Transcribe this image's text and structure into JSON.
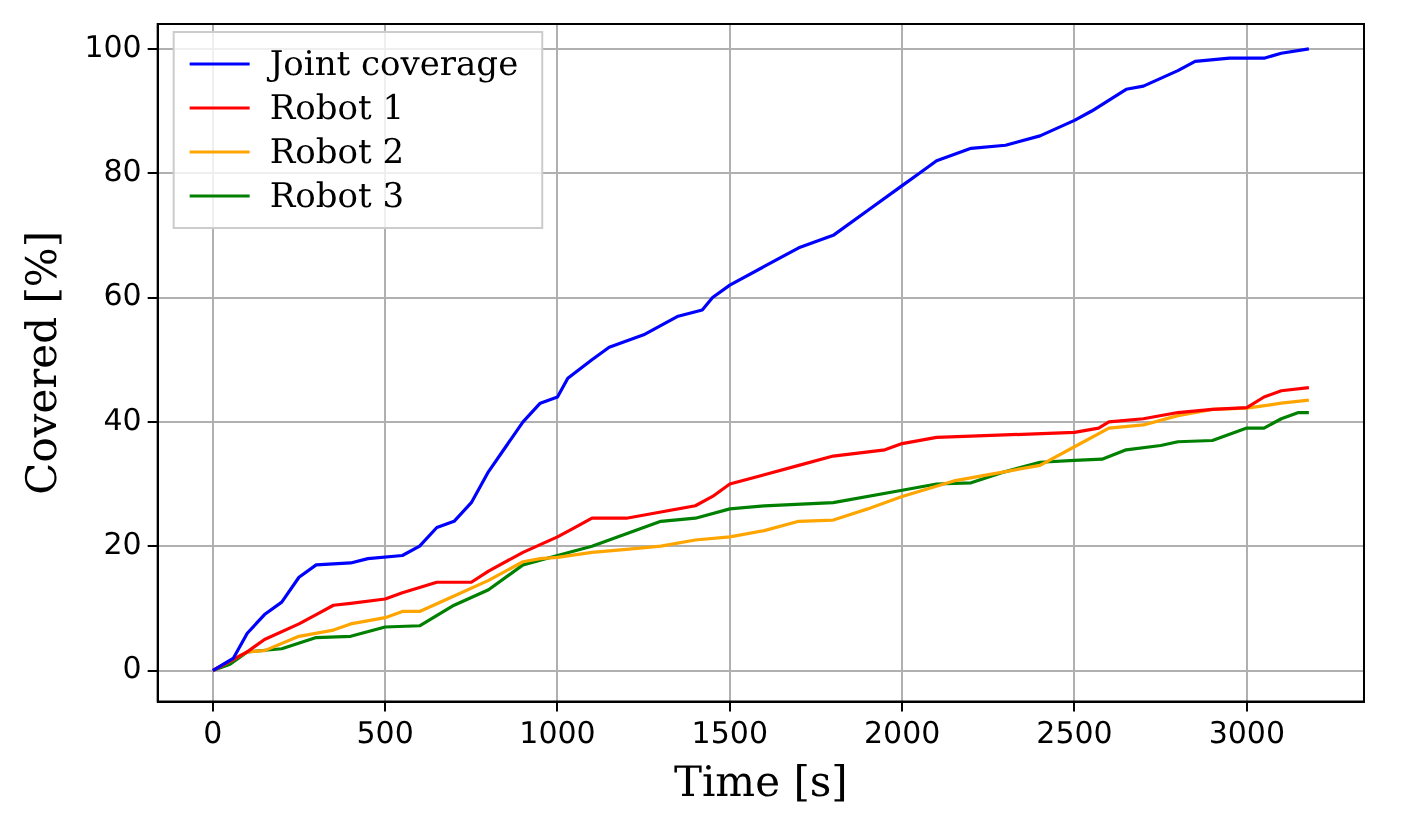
{
  "chart_data": {
    "type": "line",
    "xlabel": "Time [s]",
    "ylabel": "Covered [%]",
    "xlim": [
      -160,
      3340
    ],
    "ylim": [
      -5,
      104
    ],
    "xticks": [
      0,
      500,
      1000,
      1500,
      2000,
      2500,
      3000
    ],
    "yticks": [
      0,
      20,
      40,
      60,
      80,
      100
    ],
    "grid": true,
    "legend": "top left",
    "marker": "none",
    "line_style": "solid",
    "series": [
      {
        "name": "Joint coverage",
        "color": "#0000ff",
        "x": [
          0,
          60,
          100,
          150,
          200,
          250,
          300,
          400,
          450,
          550,
          600,
          650,
          700,
          750,
          800,
          850,
          900,
          950,
          1000,
          1030,
          1100,
          1150,
          1250,
          1350,
          1420,
          1450,
          1500,
          1600,
          1700,
          1800,
          1900,
          2000,
          2050,
          2100,
          2200,
          2300,
          2400,
          2500,
          2550,
          2650,
          2700,
          2800,
          2850,
          2950,
          3050,
          3100,
          3180
        ],
        "values": [
          0,
          2,
          6,
          9,
          11,
          15,
          17,
          17.3,
          18,
          18.5,
          20,
          23,
          24,
          27,
          32,
          36,
          40,
          43,
          44,
          47,
          50,
          52,
          54,
          57,
          58,
          60,
          62,
          65,
          68,
          70,
          74,
          78,
          80,
          82,
          84,
          84.5,
          86,
          88.5,
          90,
          93.5,
          94,
          96.5,
          98,
          98.5,
          98.5,
          99.3,
          100
        ]
      },
      {
        "name": "Robot 1",
        "color": "#ff0000",
        "x": [
          0,
          100,
          150,
          250,
          300,
          350,
          400,
          500,
          550,
          650,
          750,
          800,
          900,
          1000,
          1050,
          1100,
          1200,
          1300,
          1400,
          1450,
          1500,
          1600,
          1700,
          1800,
          1950,
          2000,
          2100,
          2200,
          2500,
          2570,
          2600,
          2700,
          2800,
          2900,
          3000,
          3050,
          3100,
          3180
        ],
        "values": [
          0,
          3,
          5,
          7.5,
          9,
          10.5,
          10.8,
          11.5,
          12.5,
          14.2,
          14.2,
          16,
          19,
          21.5,
          23,
          24.5,
          24.5,
          25.5,
          26.5,
          28,
          30,
          31.5,
          33,
          34.5,
          35.5,
          36.5,
          37.5,
          37.7,
          38.3,
          39,
          40,
          40.5,
          41.5,
          42,
          42.3,
          44,
          45,
          45.5
        ]
      },
      {
        "name": "Robot 2",
        "color": "#ffa500",
        "x": [
          0,
          100,
          150,
          250,
          350,
          400,
          500,
          550,
          600,
          700,
          800,
          900,
          950,
          1000,
          1100,
          1200,
          1300,
          1400,
          1500,
          1600,
          1700,
          1800,
          1900,
          2000,
          2150,
          2300,
          2400,
          2500,
          2600,
          2700,
          2800,
          2900,
          3000,
          3100,
          3180
        ],
        "values": [
          0,
          3,
          3.2,
          5.5,
          6.5,
          7.5,
          8.5,
          9.5,
          9.5,
          12,
          14.5,
          17.5,
          18,
          18.2,
          19,
          19.5,
          20,
          21,
          21.5,
          22.5,
          24,
          24.2,
          26,
          28,
          30.5,
          32,
          33,
          36,
          39,
          39.5,
          41,
          42,
          42.2,
          43,
          43.5
        ]
      },
      {
        "name": "Robot 3",
        "color": "#008000",
        "x": [
          0,
          50,
          100,
          200,
          300,
          400,
          500,
          600,
          700,
          800,
          900,
          1000,
          1100,
          1200,
          1300,
          1400,
          1500,
          1600,
          1800,
          2000,
          2100,
          2200,
          2300,
          2400,
          2500,
          2580,
          2650,
          2750,
          2800,
          2900,
          3000,
          3050,
          3100,
          3150,
          3180
        ],
        "values": [
          0,
          1,
          3,
          3.5,
          5.3,
          5.5,
          7,
          7.2,
          10.5,
          13,
          17,
          18.5,
          20,
          22,
          24,
          24.5,
          26,
          26.5,
          27,
          29,
          30,
          30.2,
          32,
          33.5,
          33.8,
          34,
          35.5,
          36.2,
          36.8,
          37,
          39,
          39,
          40.5,
          41.5,
          41.5
        ]
      }
    ]
  }
}
